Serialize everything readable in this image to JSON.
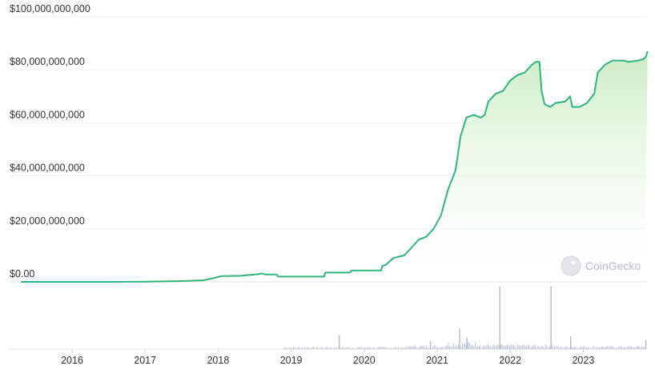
{
  "chart_data": {
    "type": "area",
    "title": "",
    "xlabel": "",
    "ylabel": "",
    "ylim": [
      0,
      100000000000
    ],
    "y_ticks": [
      "$0.00",
      "$20,000,000,000",
      "$40,000,000,000",
      "$60,000,000,000",
      "$80,000,000,000",
      "$100,000,000,000"
    ],
    "x_ticks": [
      "2016",
      "2017",
      "2018",
      "2019",
      "2020",
      "2021",
      "2022",
      "2023"
    ],
    "grid": true,
    "line_color": "#2eb67d",
    "fill_color": "#d7f0cf",
    "volume_color": "#c4c9d8",
    "series": [
      {
        "values_in_billions": [
          [
            2015.3,
            0
          ],
          [
            2016.0,
            0
          ],
          [
            2016.5,
            0
          ],
          [
            2017.0,
            0.1
          ],
          [
            2017.5,
            0.3
          ],
          [
            2017.8,
            0.6
          ],
          [
            2017.95,
            1.5
          ],
          [
            2018.05,
            2.2
          ],
          [
            2018.3,
            2.3
          ],
          [
            2018.55,
            2.9
          ],
          [
            2018.6,
            3.2
          ],
          [
            2018.65,
            2.8
          ],
          [
            2018.8,
            2.8
          ],
          [
            2018.82,
            2.0
          ],
          [
            2019.2,
            2.0
          ],
          [
            2019.45,
            2.0
          ],
          [
            2019.47,
            3.5
          ],
          [
            2019.8,
            3.5
          ],
          [
            2019.83,
            4.3
          ],
          [
            2020.23,
            4.3
          ],
          [
            2020.25,
            6.0
          ],
          [
            2020.3,
            6.5
          ],
          [
            2020.4,
            9.0
          ],
          [
            2020.55,
            10.0
          ],
          [
            2020.65,
            13.0
          ],
          [
            2020.75,
            16.0
          ],
          [
            2020.85,
            17.0
          ],
          [
            2020.95,
            20.0
          ],
          [
            2021.05,
            25.0
          ],
          [
            2021.15,
            35.0
          ],
          [
            2021.25,
            42.0
          ],
          [
            2021.32,
            55.0
          ],
          [
            2021.4,
            62.0
          ],
          [
            2021.5,
            63.0
          ],
          [
            2021.6,
            62.0
          ],
          [
            2021.65,
            63.0
          ],
          [
            2021.7,
            68.0
          ],
          [
            2021.8,
            71.0
          ],
          [
            2021.9,
            72.0
          ],
          [
            2022.0,
            76.0
          ],
          [
            2022.1,
            78.0
          ],
          [
            2022.2,
            79.0
          ],
          [
            2022.3,
            82.0
          ],
          [
            2022.35,
            83.0
          ],
          [
            2022.4,
            83.0
          ],
          [
            2022.43,
            72.0
          ],
          [
            2022.47,
            67.0
          ],
          [
            2022.55,
            66.0
          ],
          [
            2022.62,
            67.5
          ],
          [
            2022.75,
            68.0
          ],
          [
            2022.82,
            70.0
          ],
          [
            2022.85,
            66.0
          ],
          [
            2022.95,
            66.0
          ],
          [
            2023.05,
            67.5
          ],
          [
            2023.15,
            71.0
          ],
          [
            2023.2,
            79.0
          ],
          [
            2023.3,
            82.0
          ],
          [
            2023.4,
            83.5
          ],
          [
            2023.55,
            83.5
          ],
          [
            2023.62,
            83.0
          ],
          [
            2023.75,
            83.5
          ],
          [
            2023.82,
            84.0
          ],
          [
            2023.86,
            85.0
          ],
          [
            2023.88,
            87.0
          ]
        ]
      }
    ],
    "volume_spikes": [
      [
        2019.65,
        0.22
      ],
      [
        2020.9,
        0.12
      ],
      [
        2021.3,
        0.32
      ],
      [
        2021.4,
        0.18
      ],
      [
        2021.85,
        0.98
      ],
      [
        2022.55,
        0.98
      ],
      [
        2022.82,
        0.2
      ],
      [
        2023.85,
        0.14
      ]
    ]
  },
  "watermark": {
    "text": "CoinGecko",
    "icon": "gecko-icon"
  }
}
